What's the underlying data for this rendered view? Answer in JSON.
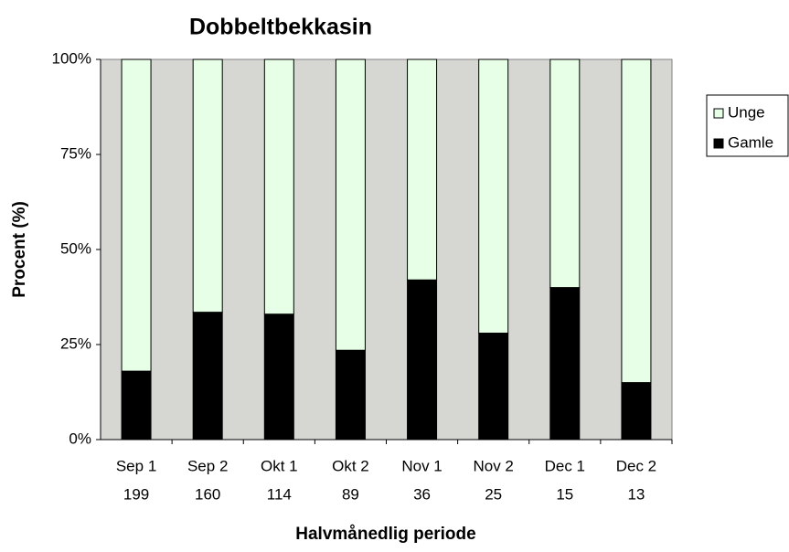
{
  "chart_data": {
    "type": "stacked_bar",
    "title": "Dobbeltbekkasin",
    "y_label": "Procent (%)",
    "x_label": "Halvmånedlig periode",
    "categories": [
      "Sep 1",
      "Sep 2",
      "Okt 1",
      "Okt 2",
      "Nov 1",
      "Nov 2",
      "Dec 1",
      "Dec 2"
    ],
    "sample_sizes": [
      199,
      160,
      114,
      89,
      36,
      25,
      15,
      13
    ],
    "series": [
      {
        "name": "Gamle",
        "color": "#000000",
        "values": [
          18,
          33.5,
          33,
          23.5,
          42,
          28,
          40,
          15
        ]
      },
      {
        "name": "Unge",
        "color": "#e6ffe6",
        "values": [
          82,
          66.5,
          67,
          76.5,
          58,
          72,
          60,
          85
        ]
      }
    ],
    "ylim": [
      0,
      100
    ],
    "yticks": [
      {
        "value": 0,
        "label": "0%"
      },
      {
        "value": 25,
        "label": "25%"
      },
      {
        "value": 50,
        "label": "50%"
      },
      {
        "value": 75,
        "label": "75%"
      },
      {
        "value": 100,
        "label": "100%"
      }
    ],
    "plot_background": "#d6d6d2",
    "legend": "right"
  }
}
